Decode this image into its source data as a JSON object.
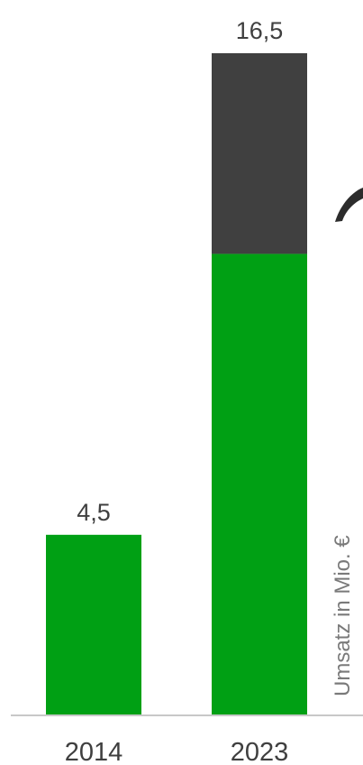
{
  "chart_data": {
    "type": "bar",
    "stacked": true,
    "categories": [
      "2014",
      "2023"
    ],
    "series": [
      {
        "values": [
          4.5,
          11.5
        ]
      },
      {
        "values": [
          0,
          5.0
        ]
      }
    ],
    "totals": [
      4.5,
      16.5
    ],
    "data_labels": [
      "4,5",
      "16,5"
    ],
    "xlabel": "",
    "ylabel": "Umsatz in Mio. €",
    "ylim": [
      0,
      16.5
    ],
    "grid": false,
    "legend": "none",
    "colors": {
      "primary": "#00a014",
      "secondary": "#404040",
      "axis": "#c8c8c8",
      "text": "#3f3f3f",
      "axis_label": "#7a7a7a"
    }
  },
  "decorations": {
    "arrow_icon": "curved-arrow-icon"
  }
}
